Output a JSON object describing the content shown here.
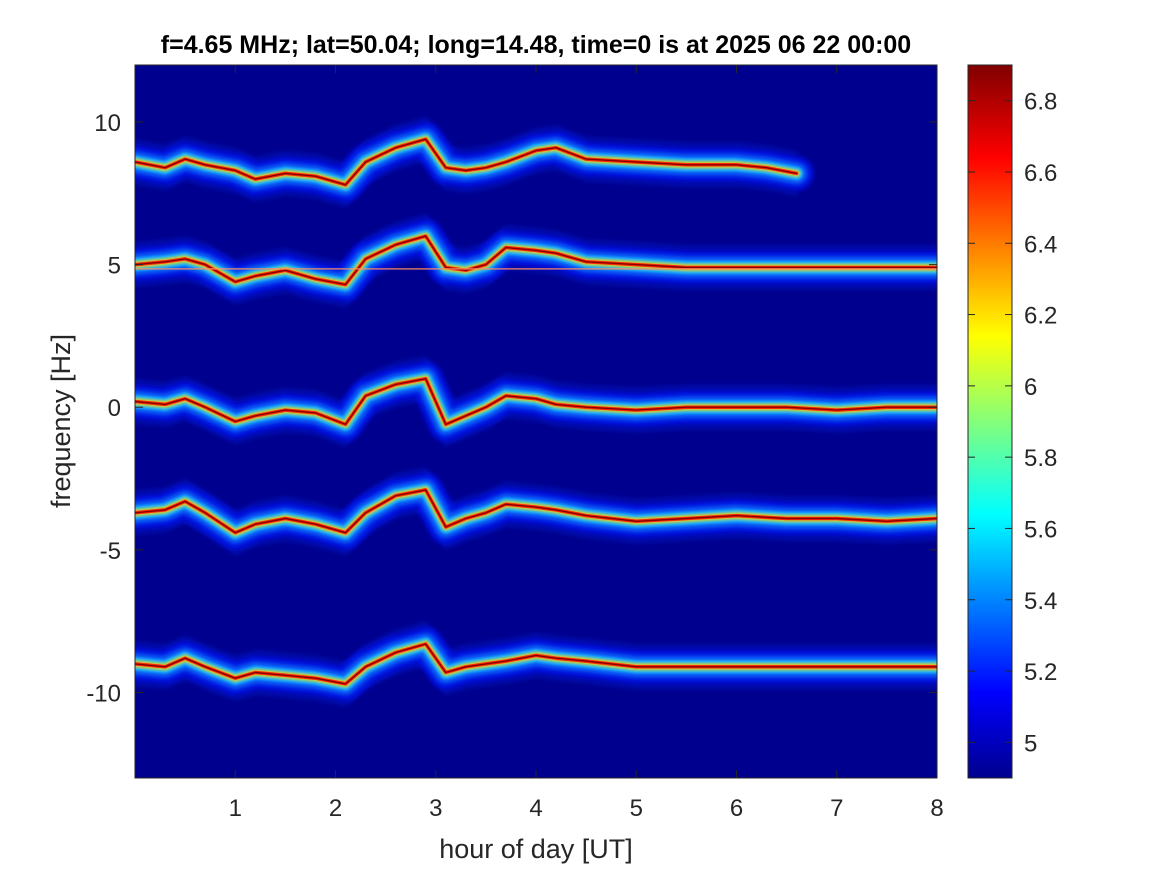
{
  "chart_data": {
    "type": "heatmap",
    "title": "f=4.65 MHz;  lat=50.04; long=14.48, time=0 is at 2025 06 22 00:00",
    "xlabel": "hour of day [UT]",
    "ylabel": "frequency [Hz]",
    "xlim": [
      0,
      8
    ],
    "ylim": [
      -13,
      12
    ],
    "x_ticks": [
      "1",
      "2",
      "3",
      "4",
      "5",
      "6",
      "7",
      "8"
    ],
    "x_tick_values": [
      1,
      2,
      3,
      4,
      5,
      6,
      7,
      8
    ],
    "y_ticks": [
      "10",
      "5",
      "0",
      "-5",
      "-10"
    ],
    "y_tick_values": [
      10,
      5,
      0,
      -5,
      -10
    ],
    "colorbar": {
      "range": [
        4.9,
        6.9
      ],
      "ticks": [
        "6.8",
        "6.6",
        "6.4",
        "6.2",
        "6",
        "5.8",
        "5.6",
        "5.4",
        "5.2",
        "5"
      ],
      "tick_values": [
        6.8,
        6.6,
        6.4,
        6.2,
        6.0,
        5.8,
        5.6,
        5.4,
        5.2,
        5.0
      ],
      "colormap": "jet"
    },
    "background_color": "#00008f",
    "reference_line_hz": 4.85,
    "series": [
      {
        "x": [
          0,
          0.3,
          0.5,
          0.7,
          1.0,
          1.2,
          1.5,
          1.8,
          2.1,
          2.3,
          2.6,
          2.9,
          3.1,
          3.3,
          3.5,
          3.7,
          4.0,
          4.2,
          4.5,
          5.0,
          5.5,
          6.0,
          6.3,
          6.6
        ],
        "y": [
          8.6,
          8.4,
          8.7,
          8.5,
          8.3,
          8.0,
          8.2,
          8.1,
          7.8,
          8.6,
          9.1,
          9.4,
          8.4,
          8.3,
          8.4,
          8.6,
          9.0,
          9.1,
          8.7,
          8.6,
          8.5,
          8.5,
          8.4,
          8.2
        ]
      },
      {
        "x": [
          0,
          0.3,
          0.5,
          0.7,
          1.0,
          1.2,
          1.5,
          1.8,
          2.1,
          2.3,
          2.6,
          2.9,
          3.1,
          3.3,
          3.5,
          3.7,
          4.0,
          4.2,
          4.5,
          5.0,
          5.5,
          6.0,
          6.5,
          7.0,
          7.5,
          8.0
        ],
        "y": [
          5.0,
          5.1,
          5.2,
          5.0,
          4.4,
          4.6,
          4.8,
          4.5,
          4.3,
          5.2,
          5.7,
          6.0,
          4.9,
          4.8,
          5.0,
          5.6,
          5.5,
          5.4,
          5.1,
          5.0,
          4.9,
          4.9,
          4.9,
          4.9,
          4.9,
          4.9
        ]
      },
      {
        "x": [
          0,
          0.3,
          0.5,
          0.7,
          1.0,
          1.2,
          1.5,
          1.8,
          2.1,
          2.3,
          2.6,
          2.9,
          3.1,
          3.3,
          3.5,
          3.7,
          4.0,
          4.2,
          4.5,
          5.0,
          5.5,
          6.0,
          6.5,
          7.0,
          7.5,
          8.0
        ],
        "y": [
          0.2,
          0.1,
          0.3,
          0.0,
          -0.5,
          -0.3,
          -0.1,
          -0.2,
          -0.6,
          0.4,
          0.8,
          1.0,
          -0.6,
          -0.3,
          0.0,
          0.4,
          0.3,
          0.1,
          0.0,
          -0.1,
          0.0,
          0.0,
          0.0,
          -0.1,
          0.0,
          0.0
        ]
      },
      {
        "x": [
          0,
          0.3,
          0.5,
          0.7,
          1.0,
          1.2,
          1.5,
          1.8,
          2.1,
          2.3,
          2.6,
          2.9,
          3.1,
          3.3,
          3.5,
          3.7,
          4.0,
          4.2,
          4.5,
          5.0,
          5.5,
          6.0,
          6.5,
          7.0,
          7.5,
          8.0
        ],
        "y": [
          -3.7,
          -3.6,
          -3.3,
          -3.7,
          -4.4,
          -4.1,
          -3.9,
          -4.1,
          -4.4,
          -3.7,
          -3.1,
          -2.9,
          -4.2,
          -3.9,
          -3.7,
          -3.4,
          -3.5,
          -3.6,
          -3.8,
          -4.0,
          -3.9,
          -3.8,
          -3.9,
          -3.9,
          -4.0,
          -3.9
        ]
      },
      {
        "x": [
          0,
          0.3,
          0.5,
          0.7,
          1.0,
          1.2,
          1.5,
          1.8,
          2.1,
          2.3,
          2.6,
          2.9,
          3.1,
          3.3,
          3.5,
          3.7,
          4.0,
          4.2,
          4.5,
          5.0,
          5.5,
          6.0,
          6.5,
          7.0,
          7.5,
          8.0
        ],
        "y": [
          -9.0,
          -9.1,
          -8.8,
          -9.1,
          -9.5,
          -9.3,
          -9.4,
          -9.5,
          -9.7,
          -9.1,
          -8.6,
          -8.3,
          -9.3,
          -9.1,
          -9.0,
          -8.9,
          -8.7,
          -8.8,
          -8.9,
          -9.1,
          -9.1,
          -9.1,
          -9.1,
          -9.1,
          -9.1,
          -9.1
        ]
      }
    ]
  }
}
